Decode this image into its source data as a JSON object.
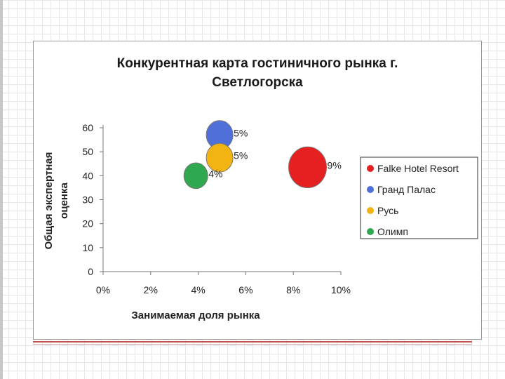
{
  "chart_data": {
    "type": "scatter",
    "title_lines": [
      "Конкурентная карта гостиничного рынка г.",
      "Светлогорска"
    ],
    "xlabel": "Занимаемая доля рынка",
    "ylabel_lines": [
      "Общая экспертная",
      "оценка"
    ],
    "xlim": [
      0,
      0.1
    ],
    "ylim": [
      0,
      60
    ],
    "x_ticks": [
      0,
      0.02,
      0.04,
      0.06,
      0.08,
      0.1
    ],
    "x_tick_labels": [
      "0%",
      "2%",
      "4%",
      "6%",
      "8%",
      "10%"
    ],
    "y_ticks": [
      0,
      10,
      20,
      30,
      40,
      50,
      60
    ],
    "y_tick_labels": [
      "0",
      "10",
      "20",
      "30",
      "40",
      "50",
      "60"
    ],
    "grid": false,
    "legend_position": "right",
    "series": [
      {
        "name": "Falke Hotel Resort",
        "x": 0.086,
        "y": 43.5,
        "label": "9%",
        "color": "#e62020",
        "size": 9
      },
      {
        "name": "Гранд Палас",
        "x": 0.049,
        "y": 57,
        "label": "5%",
        "color": "#4f70d8",
        "size": 5
      },
      {
        "name": "Русь",
        "x": 0.049,
        "y": 47.5,
        "label": "5%",
        "color": "#f2b413",
        "size": 5
      },
      {
        "name": "Олимп",
        "x": 0.039,
        "y": 40,
        "label": "4%",
        "color": "#2fa84f",
        "size": 4
      }
    ]
  }
}
